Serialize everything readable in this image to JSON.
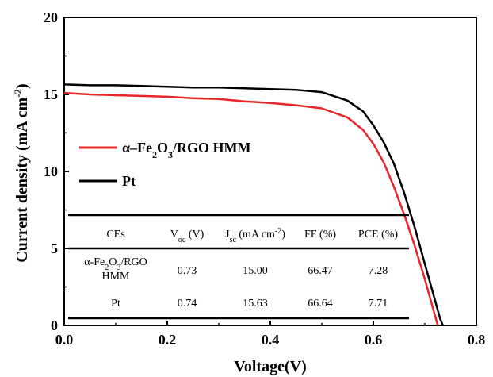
{
  "chart_data": {
    "type": "line",
    "xlabel": "Voltage(V)",
    "ylabel": "Current density (mA cm",
    "ylabel_sup": "-2",
    "ylabel_close": ")",
    "xlim": [
      0.0,
      0.8
    ],
    "ylim": [
      0,
      20
    ],
    "x_ticks": [
      "0.0",
      "0.2",
      "0.4",
      "0.6",
      "0.8"
    ],
    "x_tick_values": [
      0.0,
      0.2,
      0.4,
      0.6,
      0.8
    ],
    "y_ticks": [
      "0",
      "5",
      "10",
      "15",
      "20"
    ],
    "y_tick_values": [
      0,
      5,
      10,
      15,
      20
    ],
    "legend_position": "center-left",
    "series": [
      {
        "name": "α–Fe2O3/RGO HMM",
        "legend_parts": {
          "a": "α–Fe",
          "s1": "2",
          "b": "O",
          "s2": "3",
          "c": "/RGO HMM"
        },
        "color": "#e8262a",
        "x": [
          0.0,
          0.05,
          0.1,
          0.15,
          0.2,
          0.25,
          0.3,
          0.35,
          0.4,
          0.45,
          0.5,
          0.55,
          0.58,
          0.6,
          0.62,
          0.64,
          0.66,
          0.68,
          0.7,
          0.71,
          0.72,
          0.725
        ],
        "y": [
          15.1,
          15.0,
          14.95,
          14.9,
          14.85,
          14.75,
          14.7,
          14.55,
          14.45,
          14.3,
          14.1,
          13.5,
          12.7,
          11.8,
          10.6,
          9.0,
          7.2,
          5.2,
          3.0,
          1.8,
          0.6,
          0.0
        ]
      },
      {
        "name": "Pt",
        "legend_parts": {
          "a": "Pt"
        },
        "color": "#000000",
        "x": [
          0.0,
          0.05,
          0.1,
          0.15,
          0.2,
          0.25,
          0.3,
          0.35,
          0.4,
          0.45,
          0.5,
          0.55,
          0.58,
          0.6,
          0.62,
          0.64,
          0.66,
          0.68,
          0.7,
          0.71,
          0.72,
          0.73,
          0.735
        ],
        "y": [
          15.65,
          15.6,
          15.6,
          15.55,
          15.5,
          15.45,
          15.45,
          15.4,
          15.35,
          15.3,
          15.15,
          14.6,
          13.9,
          13.0,
          11.9,
          10.5,
          8.6,
          6.4,
          4.0,
          2.8,
          1.6,
          0.4,
          0.0
        ]
      }
    ],
    "table": {
      "header": {
        "ces": "CEs",
        "voc": {
          "a": "V",
          "sub": "oc",
          "b": " (V)"
        },
        "jsc": {
          "a": "J",
          "sub": "sc",
          "b": " (mA cm",
          "sup": "-2",
          "c": ")"
        },
        "ff": "FF (%)",
        "pce": "PCE (%)"
      },
      "rows": [
        {
          "ce_line1": {
            "a": "α-Fe",
            "s1": "2",
            "b": "O",
            "s2": "3",
            "c": "/RGO"
          },
          "ce_line2": "HMM",
          "voc": "0.73",
          "jsc": "15.00",
          "ff": "66.47",
          "pce": "7.28"
        },
        {
          "ce_line1": {
            "a": "Pt"
          },
          "ce_line2": "",
          "voc": "0.74",
          "jsc": "15.63",
          "ff": "66.64",
          "pce": "7.71"
        }
      ]
    }
  }
}
